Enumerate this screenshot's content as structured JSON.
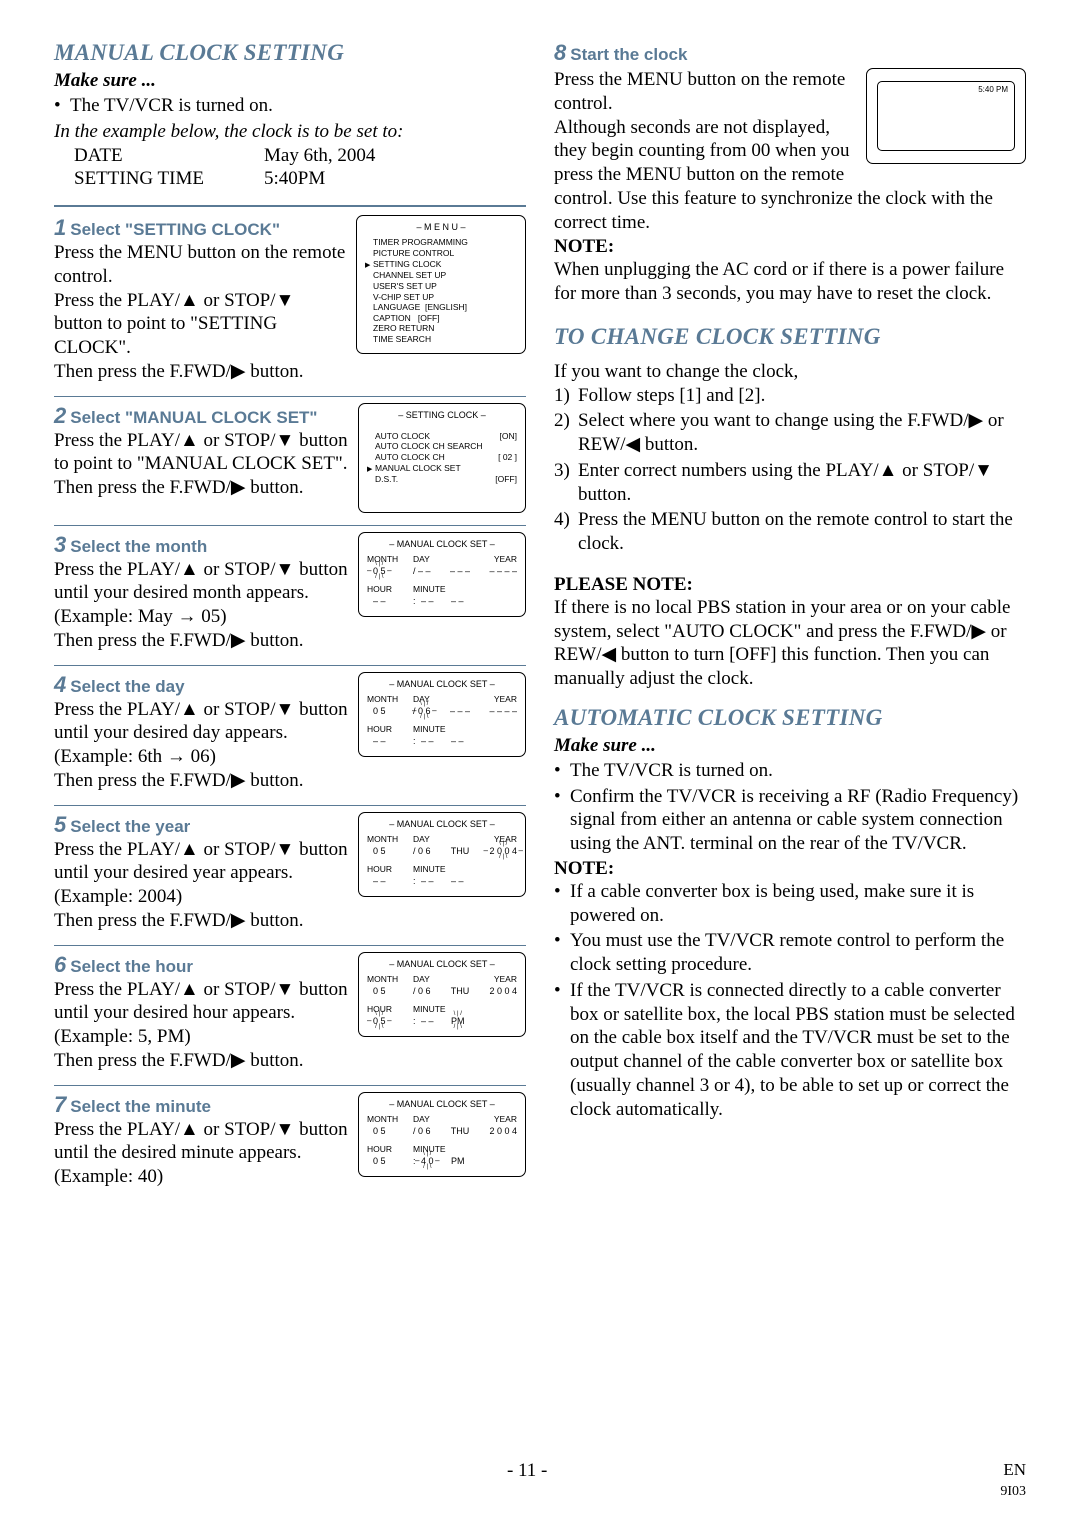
{
  "left": {
    "title": "MANUAL CLOCK SETTING",
    "makeSure": "Make sure ...",
    "tvOn": "The TV/VCR is turned on.",
    "exampleIntro": "In the example below, the clock is to be set to:",
    "dateLabel": "DATE",
    "dateVal": "May 6th, 2004",
    "timeLabel": "SETTING TIME",
    "timeVal": "5:40PM",
    "step1": {
      "num": "1",
      "label": "Select \"SETTING CLOCK\"",
      "l1": "Press the MENU button on the remote control.",
      "l2a": "Press the PLAY/",
      "l2b": " or STOP/",
      "l2c": " button to point to \"SETTING CLOCK\".",
      "l3a": "Then press the F.FWD/",
      "l3b": " button.",
      "menuTitle": "– M E N U –",
      "menuItems": [
        "TIMER PROGRAMMING",
        "PICTURE CONTROL",
        "SETTING CLOCK",
        "CHANNEL SET UP",
        "USER'S SET UP",
        "V-CHIP SET UP",
        "LANGUAGE  [ENGLISH]",
        "CAPTION   [OFF]",
        "ZERO RETURN",
        "TIME SEARCH"
      ],
      "menuPtr": 2
    },
    "step2": {
      "num": "2",
      "label": "Select \"MANUAL CLOCK SET\"",
      "l1a": "Press the PLAY/",
      "l1b": " or STOP/",
      "l1c": " button to point to \"MANUAL CLOCK SET\".",
      "l2a": "Then press the F.FWD/",
      "l2b": " button.",
      "menuTitle": "– SETTING CLOCK –",
      "rows": [
        [
          "AUTO CLOCK",
          "[ON]"
        ],
        [
          "AUTO CLOCK CH SEARCH",
          ""
        ],
        [
          "AUTO CLOCK CH",
          "[ 02 ]"
        ],
        [
          "MANUAL CLOCK SET",
          ""
        ],
        [
          "D.S.T.",
          "[OFF]"
        ]
      ],
      "ptr": 3
    },
    "step3": {
      "num": "3",
      "label": "Select the month",
      "l1a": "Press the PLAY/",
      "l1b": " or STOP/",
      "l1c": " button until your desired month appears. (Example: May → 05)",
      "l2a": "Then press the F.FWD/",
      "l2b": " button.",
      "title": "– MANUAL CLOCK SET –",
      "m": "0 5",
      "mHL": true,
      "d": "– –",
      "dow": "– – –",
      "y": "– – – –",
      "h": "– –",
      "mi": "– –",
      "ap": "– –"
    },
    "step4": {
      "num": "4",
      "label": "Select the day",
      "l1a": "Press the PLAY/",
      "l1b": " or STOP/",
      "l1c": " button until your desired day appears. (Example: 6th → 06)",
      "l2a": "Then press the F.FWD/",
      "l2b": " button.",
      "title": "– MANUAL CLOCK SET –",
      "m": "0 5",
      "d": "0 6",
      "dHL": true,
      "dow": "– – –",
      "y": "– – – –",
      "h": "– –",
      "mi": "– –",
      "ap": "– –"
    },
    "step5": {
      "num": "5",
      "label": "Select the year",
      "l1a": "Press the PLAY/",
      "l1b": " or STOP/",
      "l1c": " button until your desired year appears. (Example: 2004)",
      "l2a": "Then press the F.FWD/",
      "l2b": " button.",
      "title": "– MANUAL CLOCK SET –",
      "m": "0 5",
      "d": "0 6",
      "dow": "THU",
      "y": "2 0 0 4",
      "yHL": true,
      "h": "– –",
      "mi": "– –",
      "ap": "– –"
    },
    "step6": {
      "num": "6",
      "label": "Select the hour",
      "l1a": "Press the PLAY/",
      "l1b": " or STOP/",
      "l1c": " button until your desired hour appears. (Example: 5, PM)",
      "l2a": "Then press the F.FWD/",
      "l2b": " button.",
      "title": "– MANUAL CLOCK SET –",
      "m": "0 5",
      "d": "0 6",
      "dow": "THU",
      "y": "2 0 0 4",
      "h": "0 5",
      "hHL": true,
      "mi": "– –",
      "ap": "PM",
      "apHL": true
    },
    "step7": {
      "num": "7",
      "label": "Select the minute",
      "l1a": "Press the PLAY/",
      "l1b": " or STOP/",
      "l1c": " button until the desired minute appears. (Example: 40)",
      "title": "– MANUAL CLOCK SET –",
      "m": "0 5",
      "d": "0 6",
      "dow": "THU",
      "y": "2 0 0 4",
      "h": "0 5",
      "mi": "4 0",
      "miHL": true,
      "ap": "PM"
    }
  },
  "right": {
    "step8": {
      "num": "8",
      "label": "Start the clock"
    },
    "s8a": "Press the MENU button on the remote control.",
    "s8b": "Although seconds are not displayed, they begin counting from 00 when you press the MENU button on the remote control. Use this feature to synchronize the clock with the correct time.",
    "tvTime": "5:40 PM",
    "noteHead": "NOTE:",
    "noteBody": "When unplugging the AC cord or if there is a power failure for more than 3 seconds, you may have to reset the clock.",
    "changeTitle": "TO CHANGE CLOCK SETTING",
    "changeIntro": "If you want to change the clock,",
    "c1": "Follow steps [1] and [2].",
    "c2a": "Select where you want to change using the F.FWD/",
    "c2b": " or REW/",
    "c2c": " button.",
    "c3a": "Enter correct numbers using the PLAY/",
    "c3b": " or STOP/",
    "c3c": " button.",
    "c4": "Press the MENU button on the remote control to start the clock.",
    "pleaseHead": "PLEASE NOTE:",
    "pleaseBody1": "If there is no local PBS station in your area or on your cable system, select \"AUTO CLOCK\" and press the F.FWD/",
    "pleaseBody2": " or REW/",
    "pleaseBody3": " button to turn [OFF] this function. Then you can manually adjust the clock.",
    "autoTitle": "AUTOMATIC CLOCK SETTING",
    "autoMake": "Make sure ...",
    "autoB1": "The TV/VCR is turned on.",
    "autoB2": "Confirm the TV/VCR is receiving a RF (Radio Frequency) signal from either an antenna or cable system connection using the ANT. terminal on the rear of the TV/VCR.",
    "noteHead2": "NOTE:",
    "n2a": "If a cable converter box is being used, make sure it is powered on.",
    "n2b": "You must use the TV/VCR remote control to perform the clock setting procedure.",
    "n2c": "If the TV/VCR is connected directly to a cable converter box or satellite box, the local PBS station must be selected on the cable box itself and the TV/VCR must be set to the output channel of the cable converter box or satellite box (usually channel 3 or 4), to be able to set up or correct the clock automatically."
  },
  "footer": {
    "page": "- 11 -",
    "en": "EN",
    "code": "9I03"
  },
  "labels": {
    "month": "MONTH",
    "day": "DAY",
    "year": "YEAR",
    "hour": "HOUR",
    "minute": "MINUTE"
  }
}
